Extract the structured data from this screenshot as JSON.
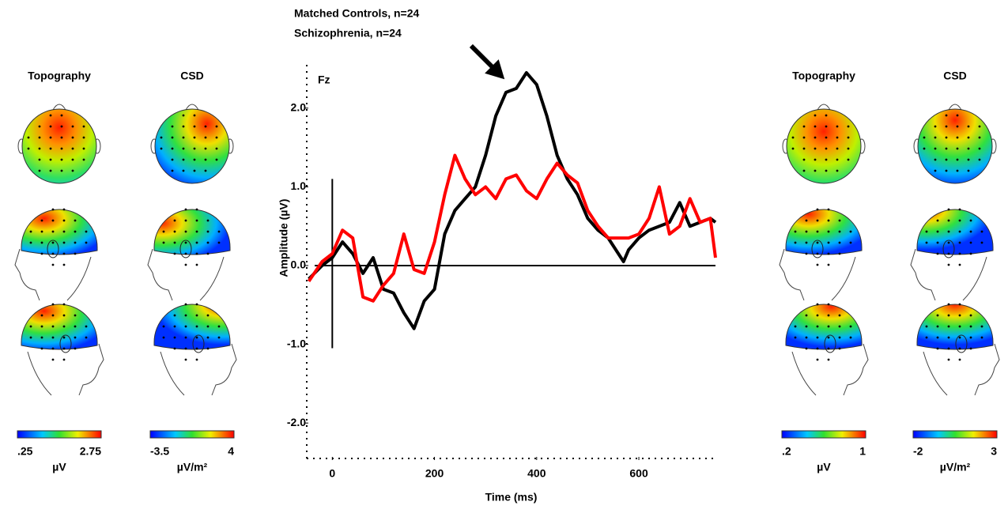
{
  "chart_data": {
    "type": "line",
    "annotation": "Fz",
    "xlabel": "Time (ms)",
    "ylabel": "Amplitude (µV)",
    "xlim": [
      -50,
      750
    ],
    "ylim": [
      -2.45,
      2.55
    ],
    "xticks": [
      0,
      200,
      400,
      600
    ],
    "yticks": [
      {
        "value": 2,
        "label": "2.0"
      },
      {
        "value": 1,
        "label": "1.0"
      },
      {
        "value": 0,
        "label": "0.0"
      },
      {
        "value": -1,
        "label": "-1.0"
      },
      {
        "value": -2,
        "label": "-2.0"
      }
    ],
    "x": [
      -46,
      -20,
      0,
      20,
      40,
      60,
      80,
      100,
      120,
      140,
      160,
      180,
      200,
      220,
      240,
      260,
      280,
      300,
      320,
      340,
      360,
      380,
      400,
      420,
      440,
      460,
      480,
      500,
      520,
      540,
      560,
      570,
      580,
      600,
      620,
      640,
      660,
      680,
      700,
      720,
      740,
      750
    ],
    "series": [
      {
        "name": "Matched Controls, n=24",
        "color": "#000000",
        "values": [
          -0.17,
          0.0,
          0.1,
          0.3,
          0.15,
          -0.1,
          0.1,
          -0.3,
          -0.35,
          -0.6,
          -0.8,
          -0.45,
          -0.3,
          0.4,
          0.7,
          0.85,
          1.0,
          1.4,
          1.9,
          2.2,
          2.25,
          2.45,
          2.3,
          1.9,
          1.4,
          1.1,
          0.9,
          0.6,
          0.45,
          0.35,
          0.15,
          0.05,
          0.2,
          0.35,
          0.45,
          0.5,
          0.55,
          0.8,
          0.5,
          0.55,
          0.6,
          0.55
        ]
      },
      {
        "name": "Schizophrenia, n=24",
        "color": "#ff0000",
        "values": [
          -0.2,
          0.05,
          0.15,
          0.45,
          0.35,
          -0.4,
          -0.45,
          -0.25,
          -0.1,
          0.4,
          -0.05,
          -0.1,
          0.3,
          0.9,
          1.4,
          1.1,
          0.9,
          1.0,
          0.85,
          1.1,
          1.15,
          0.95,
          0.85,
          1.1,
          1.3,
          1.15,
          1.05,
          0.7,
          0.5,
          0.35,
          0.35,
          0.35,
          0.35,
          0.4,
          0.6,
          1.0,
          0.4,
          0.5,
          0.85,
          0.55,
          0.6,
          0.1
        ]
      }
    ]
  },
  "topomaps": [
    {
      "title": "Topography",
      "color": "#000000",
      "colorbar": {
        "min": {
          "value": 0.25,
          "label": ".25"
        },
        "max": {
          "value": 2.75,
          "label": "2.75"
        },
        "unit": "µV"
      }
    },
    {
      "title": "CSD",
      "color": "#000000",
      "colorbar": {
        "min": {
          "value": -3.5,
          "label": "-3.5"
        },
        "max": 4,
        "unit": "µV/m²"
      }
    },
    {
      "title": "Topography",
      "color": "#ff0000",
      "colorbar": {
        "min": {
          "value": 0.2,
          "label": ".2"
        },
        "max": 1,
        "unit": "µV"
      }
    },
    {
      "title": "CSD",
      "color": "#ff0000",
      "colorbar": {
        "min": -2,
        "max": 3,
        "unit": "µV/m²"
      }
    }
  ]
}
